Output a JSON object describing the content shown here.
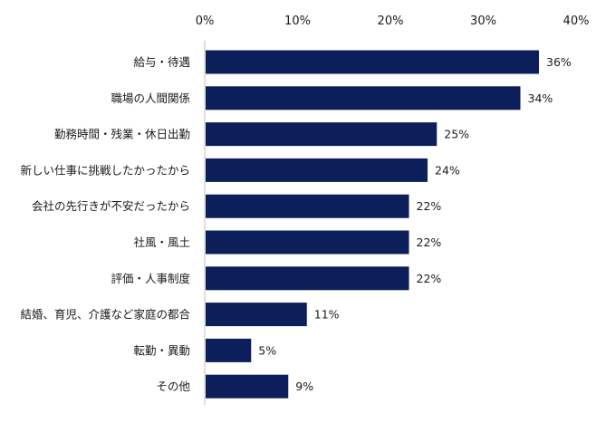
{
  "chart_data": {
    "type": "bar",
    "orientation": "horizontal",
    "categories": [
      "給与・待遇",
      "職場の人間関係",
      "勤務時間・残業・休日出勤",
      "新しい仕事に挑戦したかったから",
      "会社の先行きが不安だったから",
      "社風・風土",
      "評価・人事制度",
      "結婚、育児、介護など家庭の都合",
      "転勤・異動",
      "その他"
    ],
    "values": [
      36,
      34,
      25,
      24,
      22,
      22,
      22,
      11,
      5,
      9
    ],
    "data_labels": [
      "36%",
      "34%",
      "25%",
      "24%",
      "22%",
      "22%",
      "22%",
      "11%",
      "5%",
      "9%"
    ],
    "xlim": [
      0,
      40
    ],
    "x_ticks": [
      0,
      10,
      20,
      30,
      40
    ],
    "x_tick_labels": [
      "0%",
      "10%",
      "20%",
      "30%",
      "40%"
    ],
    "x_axis_position": "top",
    "grid": false,
    "bar_color": "#0c1f5b",
    "axis_color": "#bfbfbf"
  }
}
